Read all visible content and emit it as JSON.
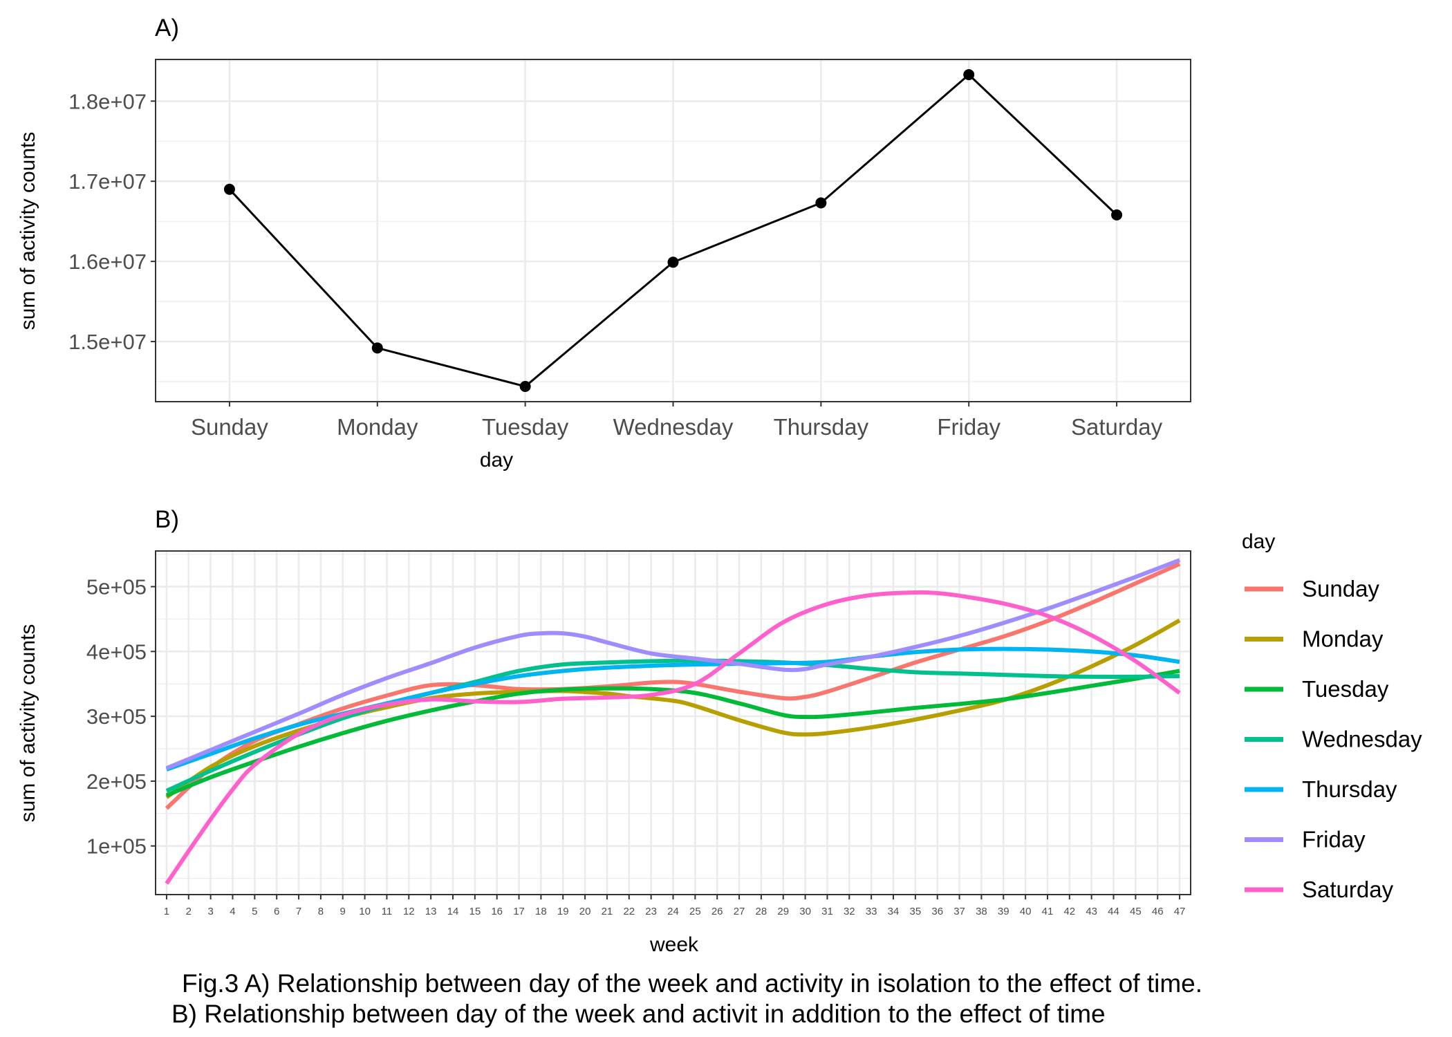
{
  "figure": {
    "caption_line1": "Fig.3 A) Relationship between day of the week and activity in isolation to the effect of time.",
    "caption_line2": "B) Relationship between day of the week and activit in addition to the effect of time"
  },
  "chart_data": [
    {
      "panel": "A)",
      "type": "line",
      "xlabel": "day",
      "ylabel": "sum of activity counts",
      "categories": [
        "Sunday",
        "Monday",
        "Tuesday",
        "Wednesday",
        "Thursday",
        "Friday",
        "Saturday"
      ],
      "values": [
        16900000,
        14920000,
        14440000,
        15990000,
        16730000,
        18330000,
        16580000
      ],
      "ylim": [
        14250000,
        18520000
      ],
      "yticks": [
        15000000,
        16000000,
        17000000,
        18000000
      ],
      "ytick_labels": [
        "1.5e+07",
        "1.6e+07",
        "1.7e+07",
        "1.8e+07"
      ],
      "markers": true,
      "line_color": "#000000",
      "grid": true
    },
    {
      "panel": "B)",
      "type": "line",
      "xlabel": "week",
      "ylabel": "sum of activity counts",
      "legend_title": "day",
      "legend_position": "right",
      "xlim": [
        0.5,
        47.5
      ],
      "ylim": [
        25000,
        555000
      ],
      "yticks": [
        100000,
        200000,
        300000,
        400000,
        500000
      ],
      "ytick_labels": [
        "1e+05",
        "2e+05",
        "3e+05",
        "4e+05",
        "5e+05"
      ],
      "grid": true,
      "series": [
        {
          "name": "Sunday",
          "color": "#F8766D",
          "x": [
            1,
            3,
            5,
            7,
            9,
            11,
            13,
            15,
            17,
            19,
            21,
            23,
            24,
            25,
            27,
            29,
            30,
            31,
            33,
            35,
            37,
            39,
            41,
            43,
            45,
            47
          ],
          "values": [
            158000,
            220000,
            262000,
            288000,
            312000,
            332000,
            348000,
            348000,
            342000,
            342000,
            346000,
            352000,
            353000,
            350000,
            338000,
            328000,
            330000,
            338000,
            360000,
            383000,
            403000,
            423000,
            447000,
            475000,
            505000,
            535000
          ]
        },
        {
          "name": "Monday",
          "color": "#B79F00",
          "x": [
            1,
            3,
            5,
            7,
            9,
            11,
            13,
            15,
            17,
            19,
            21,
            22,
            24,
            25,
            27,
            29,
            30,
            31,
            33,
            35,
            37,
            39,
            41,
            43,
            45,
            47
          ],
          "values": [
            175000,
            222000,
            254000,
            278000,
            298000,
            314000,
            328000,
            335000,
            338000,
            339000,
            335000,
            331000,
            324000,
            316000,
            294000,
            275000,
            272000,
            274000,
            283000,
            295000,
            309000,
            325000,
            348000,
            377000,
            410000,
            448000
          ]
        },
        {
          "name": "Tuesday",
          "color": "#00BA38",
          "x": [
            1,
            3,
            5,
            7,
            9,
            11,
            13,
            15,
            17,
            19,
            21,
            23,
            25,
            27,
            29,
            30,
            31,
            33,
            35,
            37,
            39,
            41,
            43,
            45,
            47
          ],
          "values": [
            178000,
            206000,
            230000,
            253000,
            274000,
            293000,
            309000,
            323000,
            335000,
            341000,
            343000,
            342000,
            336000,
            320000,
            302000,
            299000,
            300000,
            306000,
            313000,
            319000,
            326000,
            336000,
            347000,
            358000,
            370000
          ]
        },
        {
          "name": "Wednesday",
          "color": "#00C08B",
          "x": [
            1,
            3,
            5,
            7,
            9,
            11,
            13,
            15,
            17,
            19,
            21,
            23,
            25,
            27,
            29,
            31,
            33,
            35,
            37,
            39,
            41,
            43,
            45,
            47
          ],
          "values": [
            185000,
            216000,
            245000,
            272000,
            297000,
            318000,
            336000,
            353000,
            370000,
            380000,
            383000,
            385000,
            386000,
            385000,
            383000,
            379000,
            373000,
            368000,
            366000,
            364000,
            362000,
            361000,
            361000,
            362000
          ]
        },
        {
          "name": "Thursday",
          "color": "#00B4F0",
          "x": [
            1,
            3,
            5,
            7,
            9,
            11,
            13,
            15,
            17,
            19,
            21,
            23,
            25,
            27,
            29,
            31,
            33,
            35,
            37,
            39,
            41,
            43,
            45,
            47
          ],
          "values": [
            218000,
            242000,
            266000,
            287000,
            304000,
            320000,
            336000,
            350000,
            362000,
            370000,
            375000,
            378000,
            380000,
            381000,
            382000,
            384000,
            392000,
            399000,
            403000,
            404000,
            403000,
            400000,
            394000,
            384000
          ]
        },
        {
          "name": "Friday",
          "color": "#9F8CFF",
          "x": [
            1,
            3,
            5,
            7,
            9,
            11,
            13,
            15,
            17,
            18,
            19,
            20,
            21,
            23,
            25,
            27,
            29,
            30,
            31,
            33,
            35,
            37,
            39,
            41,
            43,
            45,
            47
          ],
          "values": [
            220000,
            248000,
            276000,
            304000,
            333000,
            359000,
            382000,
            406000,
            424000,
            428000,
            428000,
            423000,
            414000,
            397000,
            389000,
            381000,
            372000,
            373000,
            380000,
            392000,
            407000,
            424000,
            444000,
            466000,
            490000,
            515000,
            541000
          ]
        },
        {
          "name": "Saturday",
          "color": "#FF61CC",
          "x": [
            1,
            2,
            3,
            4,
            5,
            7,
            9,
            11,
            13,
            15,
            17,
            19,
            21,
            23,
            25,
            27,
            29,
            31,
            33,
            35,
            36,
            37,
            39,
            41,
            43,
            45,
            47
          ],
          "values": [
            42000,
            92000,
            141000,
            187000,
            225000,
            273000,
            302000,
            318000,
            326000,
            323000,
            322000,
            327000,
            329000,
            333000,
            350000,
            397000,
            445000,
            473000,
            487000,
            491000,
            490000,
            486000,
            474000,
            455000,
            425000,
            385000,
            336000
          ]
        }
      ]
    }
  ]
}
